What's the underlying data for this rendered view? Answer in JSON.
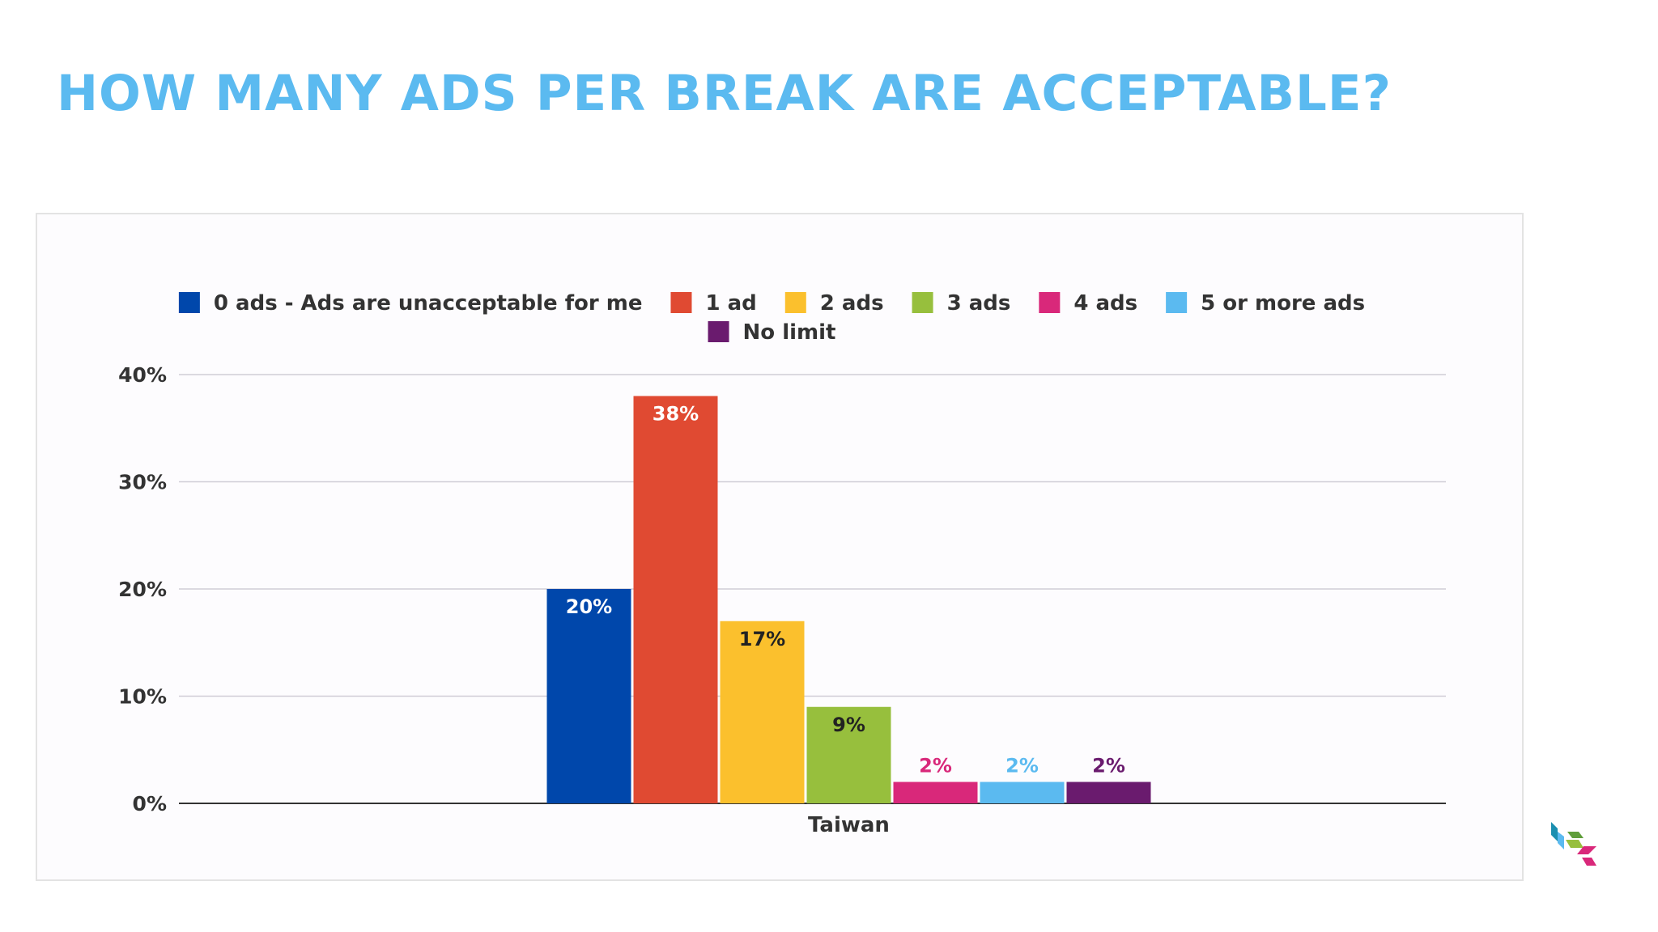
{
  "title": "HOW MANY ADS PER BREAK ARE ACCEPTABLE?",
  "chart_data": {
    "type": "bar",
    "categories": [
      "Taiwan"
    ],
    "series": [
      {
        "name": "0 ads - Ads are unacceptable for me",
        "values": [
          20
        ],
        "label": "20%",
        "color": "#0047ab",
        "label_color": "#ffffff",
        "label_inside": true
      },
      {
        "name": "1 ad",
        "values": [
          38
        ],
        "label": "38%",
        "color": "#e04a32",
        "label_color": "#ffffff",
        "label_inside": true
      },
      {
        "name": "2 ads",
        "values": [
          17
        ],
        "label": "17%",
        "color": "#fbc02d",
        "label_color": "#222222",
        "label_inside": true
      },
      {
        "name": "3 ads",
        "values": [
          9
        ],
        "label": "9%",
        "color": "#97bf3d",
        "label_color": "#222222",
        "label_inside": true
      },
      {
        "name": "4 ads",
        "values": [
          2
        ],
        "label": "2%",
        "color": "#d9287a",
        "label_color": "#d9287a",
        "label_inside": false
      },
      {
        "name": "5 or more ads",
        "values": [
          2
        ],
        "label": "2%",
        "color": "#5bbaf0",
        "label_color": "#5bbaf0",
        "label_inside": false
      },
      {
        "name": "No limit",
        "values": [
          2
        ],
        "label": "2%",
        "color": "#6a1b6e",
        "label_color": "#6a1b6e",
        "label_inside": false
      }
    ],
    "yticks": [
      "0%",
      "10%",
      "20%",
      "30%",
      "40%"
    ],
    "ylim": [
      0,
      40
    ],
    "grid": true,
    "legend_position": "top"
  },
  "logo": {
    "colors": [
      "#1a8fb0",
      "#97bf3d",
      "#d9287a",
      "#5bbaf0"
    ]
  }
}
